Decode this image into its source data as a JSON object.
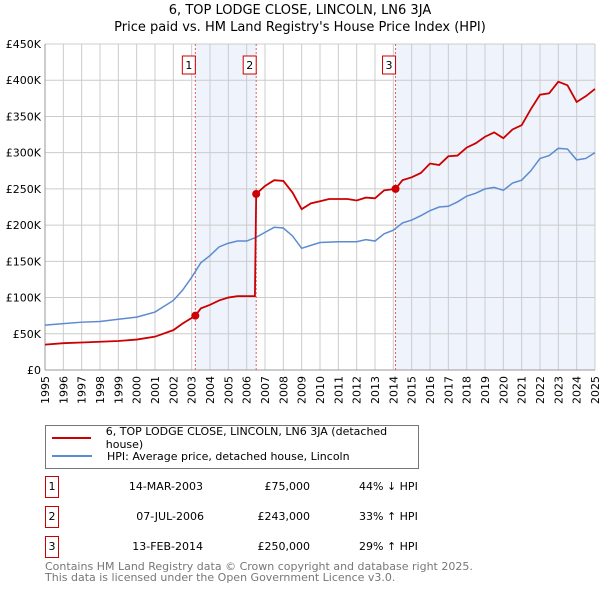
{
  "title": "6, TOP LODGE CLOSE, LINCOLN, LN6 3JA",
  "subtitle": "Price paid vs. HM Land Registry's House Price Index (HPI)",
  "chart_data": {
    "type": "line",
    "title": "6, TOP LODGE CLOSE, LINCOLN, LN6 3JA",
    "subtitle": "Price paid vs. HM Land Registry's House Price Index (HPI)",
    "xlim": [
      1995,
      2025
    ],
    "ylim": [
      0,
      450000
    ],
    "grid": true,
    "x_ticks": [
      "1995",
      "1996",
      "1997",
      "1998",
      "1999",
      "2000",
      "2001",
      "2002",
      "2003",
      "2004",
      "2005",
      "2006",
      "2007",
      "2008",
      "2009",
      "2010",
      "2011",
      "2012",
      "2013",
      "2014",
      "2015",
      "2016",
      "2017",
      "2018",
      "2019",
      "2020",
      "2021",
      "2022",
      "2023",
      "2024",
      "2025"
    ],
    "y_ticks": [
      {
        "v": 0,
        "label": "£0"
      },
      {
        "v": 50000,
        "label": "£50K"
      },
      {
        "v": 100000,
        "label": "£100K"
      },
      {
        "v": 150000,
        "label": "£150K"
      },
      {
        "v": 200000,
        "label": "£200K"
      },
      {
        "v": 250000,
        "label": "£250K"
      },
      {
        "v": 300000,
        "label": "£300K"
      },
      {
        "v": 350000,
        "label": "£350K"
      },
      {
        "v": 400000,
        "label": "£400K"
      },
      {
        "v": 450000,
        "label": "£450K"
      }
    ],
    "series": [
      {
        "name": "6, TOP LODGE CLOSE, LINCOLN, LN6 3JA (detached house)",
        "color": "#cc0000",
        "x": [
          1995,
          1996,
          1997,
          1998,
          1999,
          2000,
          2001,
          2002,
          2002.5,
          2003.2,
          2003.5,
          2004,
          2004.5,
          2005,
          2005.5,
          2006,
          2006.45,
          2006.52,
          2007,
          2007.5,
          2008,
          2008.5,
          2009,
          2009.5,
          2010,
          2010.5,
          2011,
          2011.5,
          2012,
          2012.5,
          2013,
          2013.5,
          2014.12,
          2014.5,
          2015,
          2015.5,
          2016,
          2016.5,
          2017,
          2017.5,
          2018,
          2018.5,
          2019,
          2019.5,
          2020,
          2020.5,
          2021,
          2021.5,
          2022,
          2022.5,
          2023,
          2023.5,
          2024,
          2024.5,
          2025
        ],
        "y": [
          35000,
          37000,
          38000,
          39000,
          40000,
          42000,
          46000,
          55000,
          64000,
          75000,
          85000,
          90000,
          96000,
          100000,
          102000,
          102000,
          102000,
          243000,
          254000,
          262000,
          261000,
          245000,
          222000,
          230000,
          233000,
          236000,
          236000,
          236000,
          234000,
          238000,
          237000,
          248000,
          250000,
          262000,
          266000,
          272000,
          285000,
          283000,
          295000,
          296000,
          307000,
          313000,
          322000,
          328000,
          320000,
          332000,
          338000,
          360000,
          380000,
          382000,
          398000,
          393000,
          370000,
          378000,
          388000
        ]
      },
      {
        "name": "HPI: Average price, detached house, Lincoln",
        "color": "#5b8bd0",
        "x": [
          1995,
          1996,
          1997,
          1998,
          1999,
          2000,
          2001,
          2002,
          2002.5,
          2003,
          2003.5,
          2004,
          2004.5,
          2005,
          2005.5,
          2006,
          2006.5,
          2007,
          2007.5,
          2008,
          2008.5,
          2009,
          2009.5,
          2010,
          2011,
          2012,
          2012.5,
          2013,
          2013.5,
          2014,
          2014.5,
          2015,
          2015.5,
          2016,
          2016.5,
          2017,
          2017.5,
          2018,
          2018.5,
          2019,
          2019.5,
          2020,
          2020.5,
          2021,
          2021.5,
          2022,
          2022.5,
          2023,
          2023.5,
          2024,
          2024.5,
          2025
        ],
        "y": [
          62000,
          64000,
          66000,
          67000,
          70000,
          73000,
          80000,
          96000,
          110000,
          128000,
          148000,
          158000,
          170000,
          175000,
          178000,
          178000,
          183000,
          190000,
          197000,
          196000,
          185000,
          168000,
          172000,
          176000,
          177000,
          177000,
          180000,
          178000,
          188000,
          193000,
          203000,
          207000,
          213000,
          220000,
          225000,
          226000,
          232000,
          240000,
          244000,
          250000,
          252000,
          248000,
          258000,
          262000,
          275000,
          292000,
          296000,
          306000,
          305000,
          290000,
          292000,
          300000
        ]
      }
    ],
    "sales": [
      {
        "n": "1",
        "x": 2003.2,
        "y": 75000
      },
      {
        "n": "2",
        "x": 2006.52,
        "y": 243000
      },
      {
        "n": "3",
        "x": 2014.12,
        "y": 250000
      }
    ],
    "shaded_ranges": [
      [
        2003.2,
        2006.52
      ],
      [
        2014.12,
        2025
      ]
    ]
  },
  "legend": {
    "property": "6, TOP LODGE CLOSE, LINCOLN, LN6 3JA (detached house)",
    "hpi": "HPI: Average price, detached house, Lincoln"
  },
  "sales_table": [
    {
      "n": "1",
      "date": "14-MAR-2003",
      "price": "£75,000",
      "hpi": "44% ↓ HPI"
    },
    {
      "n": "2",
      "date": "07-JUL-2006",
      "price": "£243,000",
      "hpi": "33% ↑ HPI"
    },
    {
      "n": "3",
      "date": "13-FEB-2014",
      "price": "£250,000",
      "hpi": "29% ↑ HPI"
    }
  ],
  "footer": {
    "line1": "Contains HM Land Registry data © Crown copyright and database right 2025.",
    "line2": "This data is licensed under the Open Government Licence v3.0."
  }
}
